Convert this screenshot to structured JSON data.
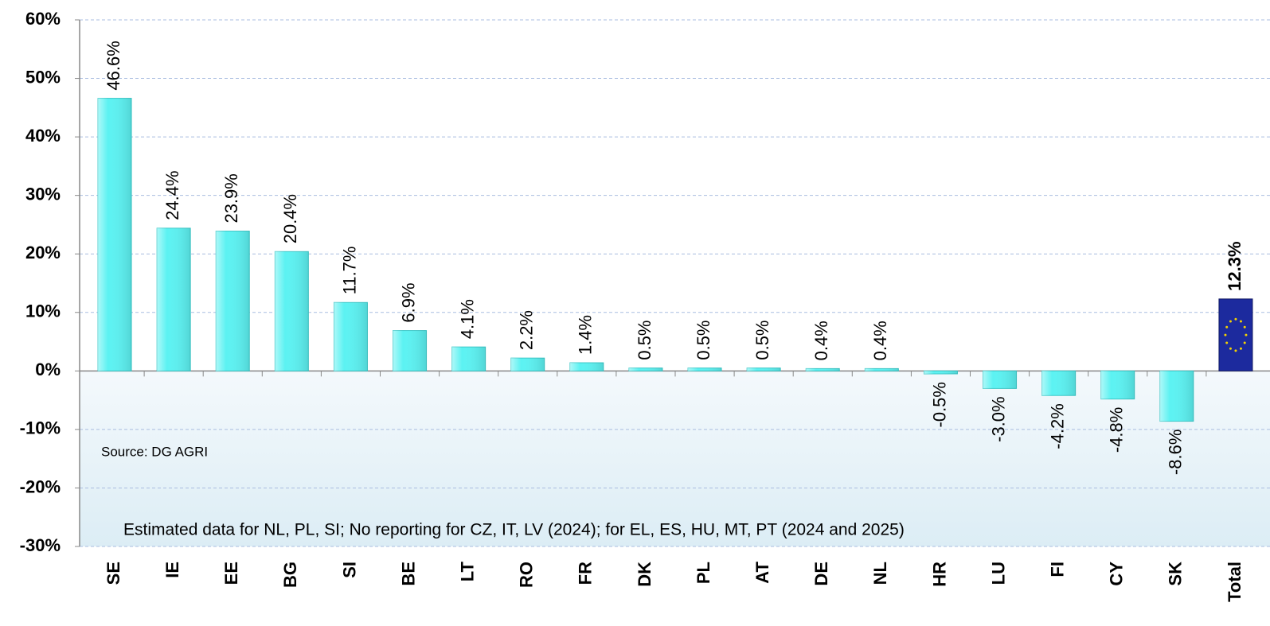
{
  "chart_data": {
    "type": "bar",
    "categories": [
      "SE",
      "IE",
      "EE",
      "BG",
      "SI",
      "BE",
      "LT",
      "RO",
      "FR",
      "DK",
      "PL",
      "AT",
      "DE",
      "NL",
      "HR",
      "LU",
      "FI",
      "CY",
      "SK",
      "Total"
    ],
    "values": [
      46.6,
      24.4,
      23.9,
      20.4,
      11.7,
      6.9,
      4.1,
      2.2,
      1.4,
      0.5,
      0.5,
      0.5,
      0.4,
      0.4,
      -0.5,
      -3.0,
      -4.2,
      -4.8,
      -8.6,
      12.3
    ],
    "value_labels": [
      "46.6%",
      "24.4%",
      "23.9%",
      "20.4%",
      "11.7%",
      "6.9%",
      "4.1%",
      "2.2%",
      "1.4%",
      "0.5%",
      "0.5%",
      "0.5%",
      "0.4%",
      "0.4%",
      "-0.5%",
      "-3.0%",
      "-4.2%",
      "-4.8%",
      "-8.6%",
      "12.3%"
    ],
    "colors": [
      "#5cf2f2",
      "#5cf2f2",
      "#5cf2f2",
      "#5cf2f2",
      "#5cf2f2",
      "#5cf2f2",
      "#5cf2f2",
      "#5cf2f2",
      "#5cf2f2",
      "#5cf2f2",
      "#5cf2f2",
      "#5cf2f2",
      "#5cf2f2",
      "#5cf2f2",
      "#5cf2f2",
      "#5cf2f2",
      "#5cf2f2",
      "#5cf2f2",
      "#5cf2f2",
      "#1c2a9e"
    ],
    "ylim": [
      -30,
      60
    ],
    "yticks": [
      {
        "value": -30,
        "label": "-30%"
      },
      {
        "value": -20,
        "label": "-20%"
      },
      {
        "value": -10,
        "label": "-10%"
      },
      {
        "value": 0,
        "label": "0%"
      },
      {
        "value": 10,
        "label": "10%"
      },
      {
        "value": 20,
        "label": "20%"
      },
      {
        "value": 30,
        "label": "30%"
      },
      {
        "value": 40,
        "label": "40%"
      },
      {
        "value": 50,
        "label": "50%"
      },
      {
        "value": 60,
        "label": "60%"
      }
    ],
    "grid": true,
    "source": "Source: DG AGRI",
    "note": "Estimated data for NL, PL, SI; No reporting for CZ, IT, LV (2024); for  EL, ES, HU, MT, PT (2024 and 2025)"
  }
}
